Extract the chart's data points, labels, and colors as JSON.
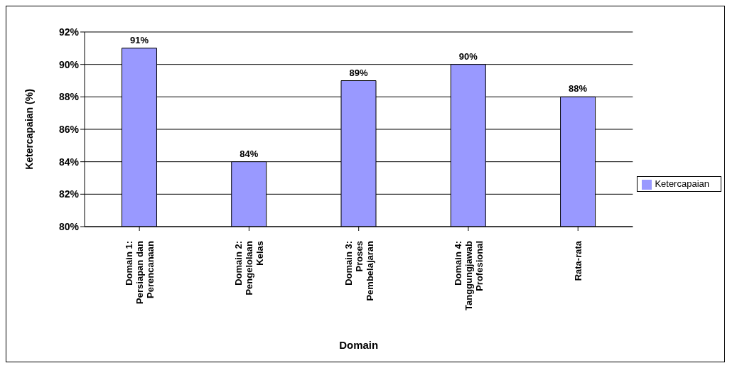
{
  "chart_data": {
    "type": "bar",
    "xlabel": "Domain",
    "ylabel": "Ketercapaian (%)",
    "categories": [
      "Domain 1:\nPersiapan dan\nPerencanaan",
      "Domain 2:\nPengelolaan\nKelas",
      "Domain 3:\nProses\nPembelajaran",
      "Domain 4:\nTanggungjawab\nProfesional",
      "Rata-rata"
    ],
    "series": [
      {
        "name": "Ketercapaian",
        "color": "#9999ff",
        "values": [
          91,
          84,
          89,
          90,
          88
        ],
        "value_labels": [
          "91%",
          "84%",
          "89%",
          "90%",
          "88%"
        ]
      }
    ],
    "ylim": [
      80,
      92
    ],
    "yticks": [
      {
        "value": 80,
        "label": "80%"
      },
      {
        "value": 82,
        "label": "82%"
      },
      {
        "value": 84,
        "label": "84%"
      },
      {
        "value": 86,
        "label": "86%"
      },
      {
        "value": 88,
        "label": "88%"
      },
      {
        "value": 90,
        "label": "90%"
      },
      {
        "value": 92,
        "label": "92%"
      }
    ],
    "grid": "y",
    "legend": "right"
  }
}
